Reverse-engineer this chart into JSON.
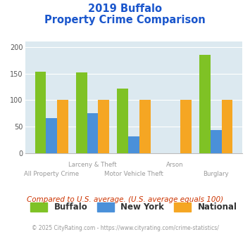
{
  "title_line1": "2019 Buffalo",
  "title_line2": "Property Crime Comparison",
  "categories": [
    "All Property Crime",
    "Larceny & Theft",
    "Motor Vehicle Theft",
    "Arson",
    "Burglary"
  ],
  "buffalo": [
    154,
    152,
    122,
    0,
    186
  ],
  "newyork": [
    66,
    75,
    31,
    0,
    43
  ],
  "national": [
    100,
    100,
    100,
    100,
    100
  ],
  "buffalo_color": "#7fc225",
  "newyork_color": "#4a90d9",
  "national_color": "#f5a623",
  "bg_color": "#dce9f0",
  "title_color": "#1a56cc",
  "xlabel_color": "#999999",
  "ylim": [
    0,
    210
  ],
  "yticks": [
    0,
    50,
    100,
    150,
    200
  ],
  "subtitle": "Compared to U.S. average. (U.S. average equals 100)",
  "footer": "© 2025 CityRating.com - https://www.cityrating.com/crime-statistics/",
  "legend_labels": [
    "Buffalo",
    "New York",
    "National"
  ],
  "bar_width": 0.27,
  "line1_labels": [
    "",
    "Larceny & Theft",
    "",
    "Arson",
    ""
  ],
  "line2_labels": [
    "All Property Crime",
    "",
    "Motor Vehicle Theft",
    "",
    "Burglary"
  ]
}
